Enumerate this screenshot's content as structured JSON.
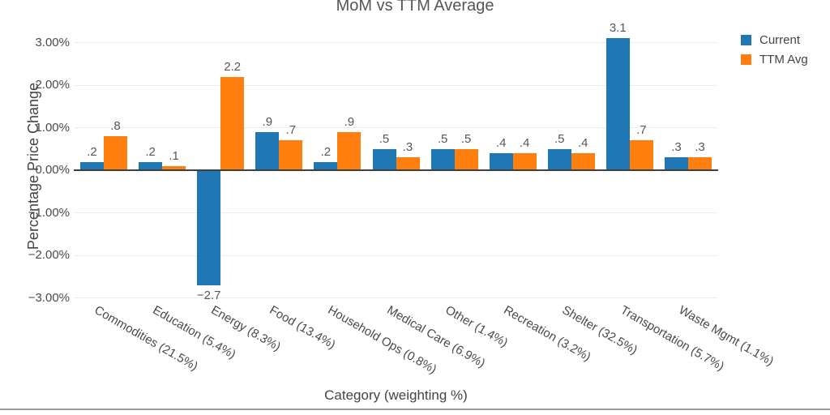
{
  "page": {
    "bottom_border_color": "#9b9b9b"
  },
  "chart_data": {
    "type": "bar",
    "title": "MoM vs TTM Average",
    "xlabel": "Category (weighting %)",
    "ylabel": "Percentage Price Change",
    "categories": [
      "Commodities (21.5%)",
      "Education (5.4%)",
      "Energy (8.3%)",
      "Food (13.4%)",
      "Household Ops (0.8%)",
      "Medical Care (6.9%)",
      "Other (1.4%)",
      "Recreation (3.2%)",
      "Shelter (32.5%)",
      "Transportation (5.7%)",
      "Waste Mgmt (1.1%)"
    ],
    "series": [
      {
        "name": "Current",
        "color": "#1f77b4",
        "values": [
          0.2,
          0.2,
          -2.7,
          0.9,
          0.2,
          0.5,
          0.5,
          0.4,
          0.5,
          3.1,
          0.3
        ],
        "labels": [
          ".2",
          ".2",
          "−2.7",
          ".9",
          ".2",
          ".5",
          ".5",
          ".4",
          ".5",
          "3.1",
          ".3"
        ]
      },
      {
        "name": "TTM Avg",
        "color": "#ff7f0e",
        "values": [
          0.8,
          0.1,
          2.2,
          0.7,
          0.9,
          0.3,
          0.5,
          0.4,
          0.4,
          0.7,
          0.3
        ],
        "labels": [
          ".8",
          ".1",
          "2.2",
          ".7",
          ".9",
          ".3",
          ".5",
          ".4",
          ".4",
          ".7",
          ".3"
        ]
      }
    ],
    "ylim": [
      -3,
      3
    ],
    "ytick_values": [
      3,
      2,
      1,
      0,
      -1,
      -2,
      -3
    ],
    "ytick_labels": [
      "3.00%",
      "2.00%",
      "1.00%",
      "0.00%",
      "−1.00%",
      "−2.00%",
      "−3.00%"
    ],
    "grid": true,
    "grid_color": "#ebebeb",
    "zeroline_color": "#404040",
    "legend_position": "top-right"
  }
}
